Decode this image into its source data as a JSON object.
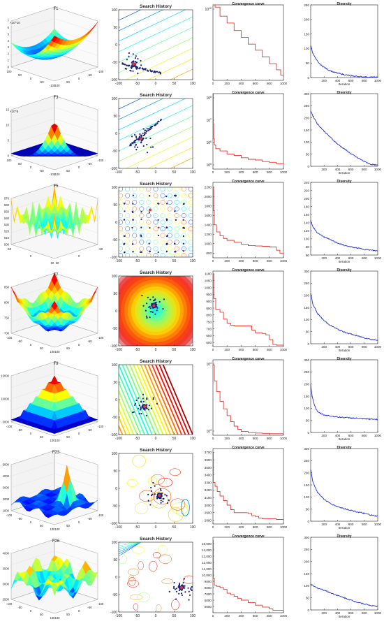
{
  "row_labels": [
    "F1",
    "F3",
    "F5",
    "F7",
    "F9",
    "F23",
    "F26"
  ],
  "column_titles": {
    "search": "Search History",
    "convergence": "Convergence curve",
    "diversity": "Diversity"
  },
  "iteration_label": "Iteration",
  "colors": {
    "convergence": "#e8372c",
    "diversity": "#2230d8",
    "points": "#1a237e",
    "best": "#e53935"
  },
  "chart_data": [
    {
      "row": "F1",
      "surface": {
        "type": "surface3d",
        "title": "F1",
        "shape": "bowl",
        "z_exponent": "×10^10",
        "z_ticks": [
          "0",
          "1",
          "2",
          "3",
          "4",
          "5",
          "6",
          "7"
        ],
        "x_ticks": [
          "100",
          "50",
          "0",
          "-50",
          "-100"
        ],
        "y_ticks": [
          "-100",
          "-50",
          "0",
          "50",
          "100"
        ]
      },
      "search_history": {
        "type": "scatter",
        "title": "Search History",
        "xlim": [
          -100,
          100
        ],
        "ylim": [
          -100,
          100
        ],
        "x_ticks": [
          "-100",
          "-50",
          "0",
          "50",
          "100"
        ],
        "y_ticks": [
          "-100",
          "-50",
          "0",
          "50",
          "100"
        ],
        "contour": "diagonal"
      },
      "convergence": {
        "type": "line",
        "title": "Convergence curve",
        "yscale": "log",
        "y_ticks": [
          "10^10"
        ],
        "x_ticks": [
          "0",
          "200",
          "400",
          "600",
          "800",
          "1000"
        ],
        "xlim": [
          0,
          1000
        ],
        "x": [
          0,
          30,
          100,
          200,
          300,
          400,
          500,
          600,
          700,
          800,
          900,
          960,
          1000
        ],
        "y": [
          1,
          0.97,
          0.85,
          0.76,
          0.66,
          0.57,
          0.48,
          0.4,
          0.31,
          0.22,
          0.14,
          0.07,
          0.05
        ]
      },
      "diversity": {
        "type": "line",
        "title": "Diversity",
        "ylim": [
          0,
          250
        ],
        "y_ticks": [
          "0",
          "50",
          "100",
          "150",
          "200",
          "250"
        ],
        "x_ticks": [
          "200",
          "400",
          "600",
          "800",
          "1000"
        ],
        "x": [
          0,
          30,
          80,
          150,
          250,
          350,
          500,
          650,
          800,
          1000
        ],
        "y": [
          112,
          85,
          62,
          43,
          28,
          18,
          10,
          5,
          2,
          1
        ]
      }
    },
    {
      "row": "F3",
      "surface": {
        "type": "surface3d",
        "title": "F3",
        "shape": "tilted",
        "z_exponent": "×10^5",
        "z_ticks": [
          "0",
          "5",
          "10",
          "15"
        ],
        "x_ticks": [
          "100",
          "50",
          "0",
          "-50",
          "-100"
        ],
        "y_ticks": [
          "-100",
          "-50",
          "0",
          "50",
          "100"
        ]
      },
      "search_history": {
        "type": "scatter",
        "title": "Search History",
        "xlim": [
          -100,
          100
        ],
        "ylim": [
          -100,
          100
        ],
        "x_ticks": [
          "-100",
          "-50",
          "0",
          "50",
          "100"
        ],
        "y_ticks": [
          "-100",
          "-50",
          "0",
          "50",
          "100"
        ],
        "contour": "diagonal"
      },
      "convergence": {
        "type": "line",
        "title": "Convergence curve",
        "yscale": "log",
        "y_ticks": [
          "10^8",
          "10^7",
          "10^6",
          "10^5"
        ],
        "x_ticks": [
          "0",
          "200",
          "400",
          "600",
          "800",
          "1000"
        ],
        "xlim": [
          0,
          1000
        ],
        "x": [
          0,
          5,
          10,
          20,
          40,
          100,
          200,
          300,
          400,
          500,
          600,
          700,
          800,
          900,
          1000
        ],
        "y": [
          1,
          0.6,
          0.4,
          0.32,
          0.27,
          0.24,
          0.2,
          0.18,
          0.15,
          0.13,
          0.12,
          0.1,
          0.09,
          0.07,
          0.06
        ]
      },
      "diversity": {
        "type": "line",
        "title": "Diversity",
        "ylim": [
          0,
          300
        ],
        "y_ticks": [
          "0",
          "50",
          "100",
          "150",
          "200",
          "250",
          "300"
        ],
        "x_ticks": [
          "200",
          "400",
          "600",
          "800",
          "1000"
        ],
        "x": [
          0,
          30,
          100,
          200,
          300,
          400,
          500,
          600,
          700,
          800,
          900,
          1000
        ],
        "y": [
          230,
          210,
          175,
          145,
          118,
          92,
          72,
          52,
          35,
          20,
          8,
          4
        ]
      }
    },
    {
      "row": "F5",
      "surface": {
        "type": "surface3d",
        "title": "F5",
        "shape": "rastrigin",
        "z_exponent": "",
        "z_ticks": [
          "500",
          "510",
          "520",
          "530",
          "540",
          "550",
          "560",
          "570"
        ],
        "x_ticks": [
          "-50",
          "0",
          "50"
        ],
        "y_ticks": [
          "-50",
          "0",
          "50"
        ]
      },
      "search_history": {
        "type": "scatter",
        "title": "Search History",
        "xlim": [
          -100,
          100
        ],
        "ylim": [
          -100,
          100
        ],
        "x_ticks": [
          "-100",
          "-50",
          "0",
          "50",
          "100"
        ],
        "y_ticks": [
          "-100",
          "-50",
          "0",
          "50",
          "100"
        ],
        "contour": "grid"
      },
      "convergence": {
        "type": "line",
        "title": "Convergence curve",
        "ylim": [
          700,
          2300
        ],
        "y_ticks": [
          "800",
          "1000",
          "1200",
          "1400",
          "1600",
          "1800",
          "2000",
          "2200"
        ],
        "x_ticks": [
          "0",
          "200",
          "400",
          "600",
          "800",
          "1000"
        ],
        "xlim": [
          0,
          1000
        ],
        "x": [
          0,
          10,
          20,
          50,
          100,
          150,
          200,
          300,
          400,
          500,
          600,
          700,
          800,
          900,
          950,
          1000
        ],
        "y": [
          2200,
          1700,
          1400,
          1250,
          1170,
          1110,
          1070,
          1030,
          990,
          960,
          950,
          945,
          930,
          860,
          800,
          770
        ]
      },
      "diversity": {
        "type": "line",
        "title": "Diversity",
        "ylim": [
          60,
          240
        ],
        "y_ticks": [
          "60",
          "80",
          "100",
          "120",
          "140",
          "160",
          "180",
          "200",
          "220",
          "240"
        ],
        "x_ticks": [
          "200",
          "400",
          "600",
          "800",
          "1000"
        ],
        "x": [
          0,
          30,
          100,
          200,
          300,
          400,
          500,
          600,
          700,
          800,
          900,
          1000
        ],
        "y": [
          145,
          130,
          115,
          105,
          97,
          90,
          84,
          80,
          77,
          74,
          72,
          70
        ]
      }
    },
    {
      "row": "F7",
      "surface": {
        "type": "surface3d",
        "title": "F7",
        "shape": "bowl2",
        "z_exponent": "",
        "z_ticks": [
          "700",
          "750",
          "800",
          "850"
        ],
        "x_ticks": [
          "-100",
          "-50",
          "0",
          "50",
          "100"
        ],
        "y_ticks": [
          "-100",
          "-50",
          "0",
          "50",
          "100"
        ]
      },
      "search_history": {
        "type": "scatter",
        "title": "Search History",
        "xlim": [
          -100,
          100
        ],
        "ylim": [
          -100,
          100
        ],
        "x_ticks": [
          "-100",
          "-50",
          "0",
          "50",
          "100"
        ],
        "y_ticks": [
          "-100",
          "-50",
          "0",
          "50",
          "100"
        ],
        "contour": "radial"
      },
      "convergence": {
        "type": "line",
        "title": "Convergence curve",
        "ylim": [
          570,
          1120
        ],
        "y_ticks": [
          "600",
          "650",
          "700",
          "750",
          "800",
          "850",
          "900",
          "950",
          "1000",
          "1050",
          "1100"
        ],
        "x_ticks": [
          "0",
          "200",
          "400",
          "600",
          "800",
          "1000"
        ],
        "xlim": [
          0,
          1000
        ],
        "x": [
          0,
          10,
          40,
          100,
          150,
          200,
          250,
          300,
          500,
          550,
          600,
          700,
          750,
          800,
          850,
          900,
          1000
        ],
        "y": [
          1100,
          920,
          840,
          820,
          770,
          740,
          725,
          720,
          720,
          690,
          670,
          665,
          655,
          620,
          585,
          580,
          578
        ]
      },
      "diversity": {
        "type": "line",
        "title": "Diversity",
        "ylim": [
          0,
          300
        ],
        "y_ticks": [
          "0",
          "50",
          "100",
          "150",
          "200",
          "250",
          "300"
        ],
        "x_ticks": [
          "200",
          "400",
          "600",
          "800",
          "1000"
        ],
        "x": [
          0,
          30,
          100,
          200,
          300,
          400,
          500,
          600,
          700,
          800,
          900,
          1000
        ],
        "y": [
          210,
          165,
          125,
          95,
          75,
          60,
          48,
          40,
          32,
          25,
          18,
          15
        ]
      }
    },
    {
      "row": "F9",
      "surface": {
        "type": "surface3d",
        "title": "F9",
        "shape": "pyramid",
        "z_exponent": "",
        "z_ticks": [
          "5000",
          "10000",
          "15000"
        ],
        "x_ticks": [
          "-100",
          "-50",
          "0",
          "50",
          "100"
        ],
        "y_ticks": [
          "-100",
          "-50",
          "0",
          "50",
          "100"
        ]
      },
      "search_history": {
        "type": "scatter",
        "title": "Search History",
        "xlim": [
          -100,
          100
        ],
        "ylim": [
          -100,
          100
        ],
        "x_ticks": [
          "-100",
          "-50",
          "0",
          "50",
          "100"
        ],
        "y_ticks": [
          "-100",
          "-50",
          "0",
          "50",
          "100"
        ],
        "contour": "stripes"
      },
      "convergence": {
        "type": "line",
        "title": "Convergence curve",
        "yscale": "log",
        "y_ticks": [
          "10^4",
          "10^3"
        ],
        "x_ticks": [
          "0",
          "200",
          "400",
          "600",
          "800",
          "1000"
        ],
        "xlim": [
          0,
          1000
        ],
        "x": [
          0,
          20,
          50,
          100,
          150,
          200,
          250,
          300,
          350,
          400,
          500,
          600,
          700,
          800,
          900,
          1000
        ],
        "y": [
          0.93,
          0.72,
          0.58,
          0.45,
          0.35,
          0.26,
          0.18,
          0.12,
          0.08,
          0.05,
          0.035,
          0.03,
          0.025,
          0.02,
          0.02,
          0.02
        ]
      },
      "diversity": {
        "type": "line",
        "title": "Diversity",
        "ylim": [
          0,
          300
        ],
        "y_ticks": [
          "0",
          "50",
          "100",
          "150",
          "200",
          "250",
          "300"
        ],
        "x_ticks": [
          "200",
          "400",
          "600",
          "800",
          "1000"
        ],
        "x": [
          0,
          20,
          60,
          100,
          200,
          300,
          400,
          500,
          600,
          700,
          800,
          900,
          1000
        ],
        "y": [
          200,
          150,
          110,
          85,
          72,
          68,
          64,
          62,
          60,
          58,
          56,
          55,
          54
        ]
      }
    },
    {
      "row": "F23",
      "surface": {
        "type": "surface3d",
        "title": "F23",
        "shape": "peaks",
        "z_exponent": "",
        "z_ticks": [
          "1000",
          "2000",
          "3000",
          "4000",
          "5000"
        ],
        "x_ticks": [
          "-100",
          "-50",
          "0",
          "50",
          "100"
        ],
        "y_ticks": [
          "-100",
          "-50",
          "0",
          "50",
          "100"
        ]
      },
      "search_history": {
        "type": "scatter",
        "title": "Search History",
        "xlim": [
          -100,
          100
        ],
        "ylim": [
          -100,
          100
        ],
        "x_ticks": [
          "-100",
          "-50",
          "0",
          "50",
          "100"
        ],
        "y_ticks": [
          "-100",
          "-50",
          "0",
          "50",
          "100"
        ],
        "contour": "blobs"
      },
      "convergence": {
        "type": "line",
        "title": "Convergence curve",
        "ylim": [
          2750,
          3750
        ],
        "y_ticks": [
          "2800",
          "2900",
          "3000",
          "3100",
          "3200",
          "3300",
          "3400",
          "3500",
          "3600",
          "3700"
        ],
        "x_ticks": [
          "0",
          "200",
          "400",
          "600",
          "800",
          "1000"
        ],
        "xlim": [
          0,
          1000
        ],
        "x": [
          0,
          5,
          30,
          60,
          100,
          150,
          200,
          250,
          300,
          500,
          550,
          600,
          650,
          700,
          900,
          1000
        ],
        "y": [
          3700,
          3300,
          3250,
          3180,
          3120,
          3060,
          3000,
          2940,
          2900,
          2890,
          2860,
          2850,
          2830,
          2820,
          2810,
          2800
        ]
      },
      "diversity": {
        "type": "line",
        "title": "Diversity",
        "ylim": [
          0,
          300
        ],
        "y_ticks": [
          "0",
          "50",
          "100",
          "150",
          "200",
          "250",
          "300"
        ],
        "x_ticks": [
          "200",
          "400",
          "600",
          "800",
          "1000"
        ],
        "x": [
          0,
          30,
          100,
          200,
          300,
          400,
          500,
          600,
          700,
          800,
          900,
          1000
        ],
        "y": [
          215,
          165,
          120,
          90,
          72,
          60,
          52,
          45,
          38,
          32,
          25,
          20
        ]
      }
    },
    {
      "row": "F26",
      "surface": {
        "type": "surface3d",
        "title": "F26",
        "shape": "rugged",
        "z_exponent": "",
        "z_ticks": [
          "2500",
          "3000",
          "3500",
          "4000"
        ],
        "x_ticks": [
          "-100",
          "-50",
          "0",
          "50",
          "100"
        ],
        "y_ticks": [
          "-100",
          "-50",
          "0",
          "50",
          "100"
        ]
      },
      "search_history": {
        "type": "scatter",
        "title": "Search History",
        "xlim": [
          -100,
          100
        ],
        "ylim": [
          -100,
          100
        ],
        "x_ticks": [
          "-100",
          "-50",
          "0",
          "50",
          "100"
        ],
        "y_ticks": [
          "-100",
          "-50",
          "0",
          "50",
          "100"
        ],
        "contour": "mixed"
      },
      "convergence": {
        "type": "line",
        "title": "Convergence curve",
        "ylim": [
          4000,
          16000
        ],
        "y_ticks": [
          "5000",
          "6000",
          "7000",
          "8000",
          "9000",
          "10,000",
          "11,000",
          "12,000",
          "13,000",
          "14,000",
          "15,000"
        ],
        "x_ticks": [
          "0",
          "200",
          "400",
          "600",
          "800",
          "1000"
        ],
        "xlim": [
          0,
          1000
        ],
        "x": [
          0,
          5,
          20,
          50,
          100,
          150,
          200,
          250,
          300,
          350,
          400,
          500,
          600,
          700,
          800,
          850,
          1000
        ],
        "y": [
          15500,
          9500,
          8400,
          8200,
          8000,
          7700,
          7100,
          6900,
          6600,
          6300,
          6000,
          5600,
          5200,
          4900,
          4600,
          4400,
          4300
        ]
      },
      "diversity": {
        "type": "line",
        "title": "Diversity",
        "ylim": [
          0,
          300
        ],
        "y_ticks": [
          "0",
          "50",
          "100",
          "150",
          "200",
          "250",
          "300"
        ],
        "x_ticks": [
          "200",
          "400",
          "600",
          "800",
          "1000"
        ],
        "x": [
          0,
          30,
          100,
          200,
          300,
          400,
          500,
          600,
          700,
          800,
          900,
          1000
        ],
        "y": [
          110,
          100,
          90,
          82,
          70,
          60,
          50,
          40,
          32,
          25,
          18,
          15
        ]
      }
    }
  ]
}
